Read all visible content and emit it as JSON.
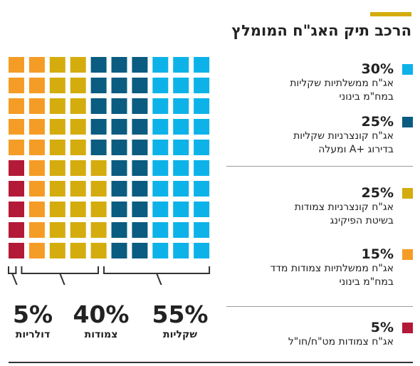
{
  "colors": {
    "accent": "#d4ac0d",
    "sky": "#0db3e8",
    "navy": "#0a5c80",
    "gold": "#d4ac0d",
    "orange": "#f59c26",
    "crimson": "#b31a38",
    "bracket": "#333333"
  },
  "title": "הרכב תיק האג\"ח המומלץ",
  "legend": [
    {
      "pct": "30%",
      "line1": "אג\"ח ממשלתיות שקליות",
      "line2": "במח\"מ בינוני",
      "color_key": "sky"
    },
    {
      "pct": "25%",
      "line1": "אג\"ח קונצרניות שקליות",
      "line2": "בדירוג +A ומעלה",
      "color_key": "navy"
    },
    {
      "pct": "25%",
      "line1": "אג\"ח קונצרניות צמודות",
      "line2": "בשיטת הפיקינג",
      "color_key": "gold"
    },
    {
      "pct": "15%",
      "line1": "אג\"ח ממשלתיות צמודות מדד",
      "line2": "במח\"מ בינוני",
      "color_key": "orange"
    },
    {
      "pct": "5%",
      "line1": "אג\"ח צמודות מט\"ח/חו\"ל",
      "line2": "",
      "color_key": "crimson"
    }
  ],
  "groups": [
    {
      "pct": "55%",
      "name": "שקליות"
    },
    {
      "pct": "40%",
      "name": "צמודות"
    },
    {
      "pct": "5%",
      "name": "דולריות"
    }
  ],
  "chart_data": {
    "type": "waffle",
    "title": "הרכב תיק האג\"ח המומלץ",
    "unit": "%",
    "grid": {
      "rows": 10,
      "cols": 10
    },
    "categories": [
      "אג\"ח ממשלתיות שקליות במח\"מ בינוני",
      "אג\"ח קונצרניות שקליות בדירוג +A ומעלה",
      "אג\"ח קונצרניות צמודות בשיטת הפיקינג",
      "אג\"ח ממשלתיות צמודות מדד במח\"מ בינוני",
      "אג\"ח צמודות מט\"ח/חו\"ל"
    ],
    "values": [
      30,
      25,
      25,
      15,
      5
    ],
    "colors": [
      "#0db3e8",
      "#0a5c80",
      "#d4ac0d",
      "#f59c26",
      "#b31a38"
    ],
    "groups": [
      {
        "name": "שקליות",
        "value": 55
      },
      {
        "name": "צמודות",
        "value": 40
      },
      {
        "name": "דולריות",
        "value": 5
      }
    ]
  }
}
